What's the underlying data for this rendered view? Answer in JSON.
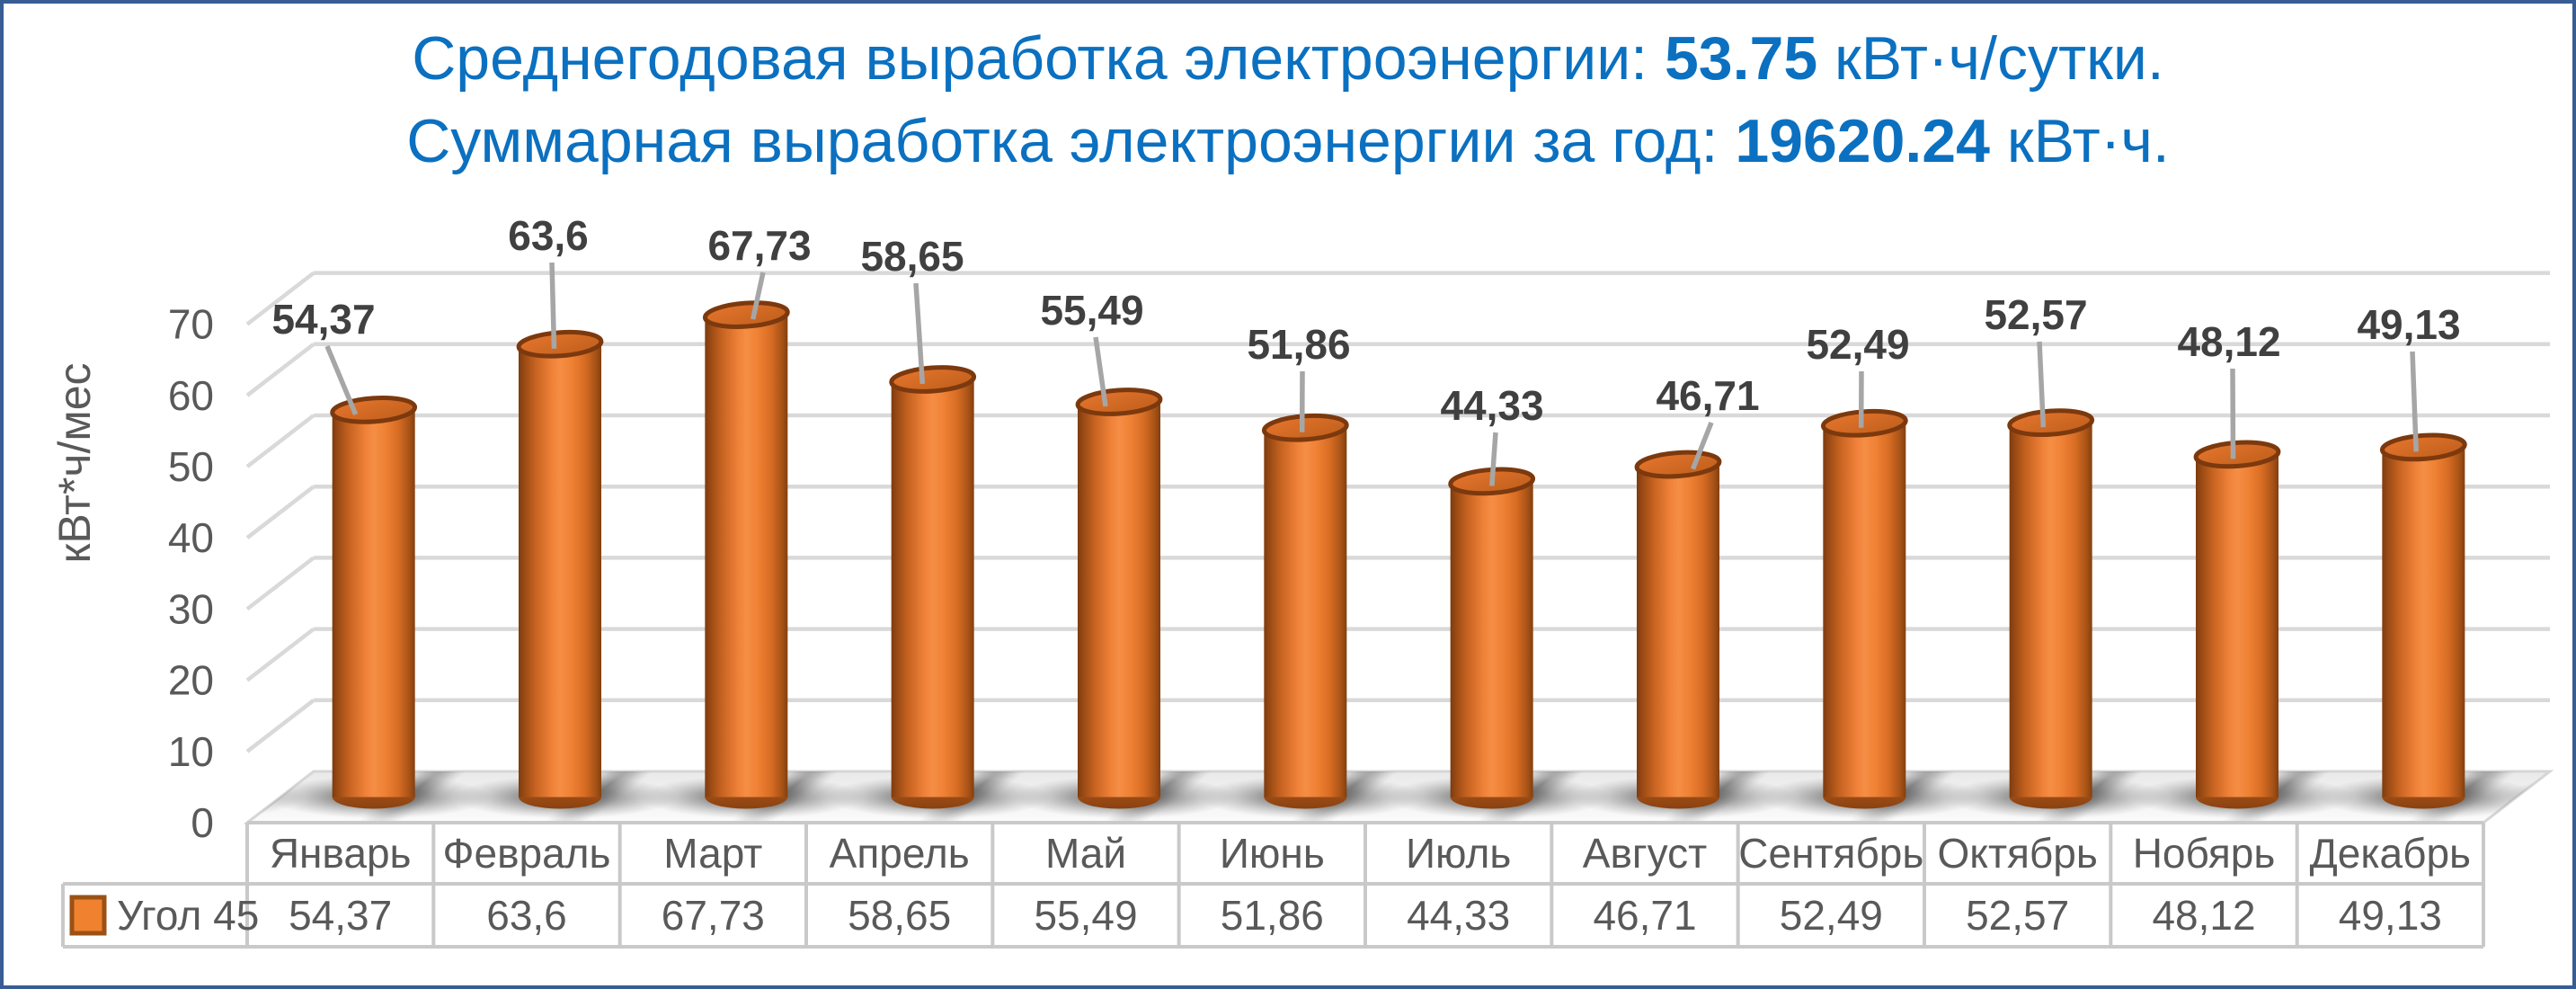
{
  "frame": {
    "border_color": "#375D94"
  },
  "title": {
    "line1_prefix": "Среднегодовая выработка электроэнергии: ",
    "line1_value": "53.75",
    "line1_suffix": " кВт·ч/сутки.",
    "line2_prefix": "Суммарная выработка электроэнергии за год: ",
    "line2_value": "19620.24",
    "line2_suffix": " кВт·ч.",
    "color": "#0B70C0"
  },
  "chart_data": {
    "type": "bar",
    "style": "3d-cylinder",
    "categories": [
      "Январь",
      "Февраль",
      "Март",
      "Апрель",
      "Май",
      "Июнь",
      "Июль",
      "Август",
      "Сентябрь",
      "Октябрь",
      "Нобярь",
      "Декабрь"
    ],
    "series": [
      {
        "name": "Угол 45",
        "values": [
          54.37,
          63.6,
          67.73,
          58.65,
          55.49,
          51.86,
          44.33,
          46.71,
          52.49,
          52.57,
          48.12,
          49.13
        ]
      }
    ],
    "value_labels": [
      "54,37",
      "63,6",
      "67,73",
      "58,65",
      "55,49",
      "51,86",
      "44,33",
      "46,71",
      "52,49",
      "52,57",
      "48,12",
      "49,13"
    ],
    "ylabel": "кВт*ч/мес",
    "yticks": [
      0,
      10,
      20,
      30,
      40,
      50,
      60,
      70
    ],
    "ylim": [
      0,
      70
    ],
    "grid": true,
    "legend_position": "data-table-left",
    "bar_color": "#ED7D31",
    "bar_rim_color": "#7C390E",
    "label_color": "#404040",
    "axis_text_color": "#595959",
    "gridline_color": "#D9D9D9",
    "leader_line_color": "#A6A6A6",
    "table_border_color": "#C9C9C9"
  }
}
